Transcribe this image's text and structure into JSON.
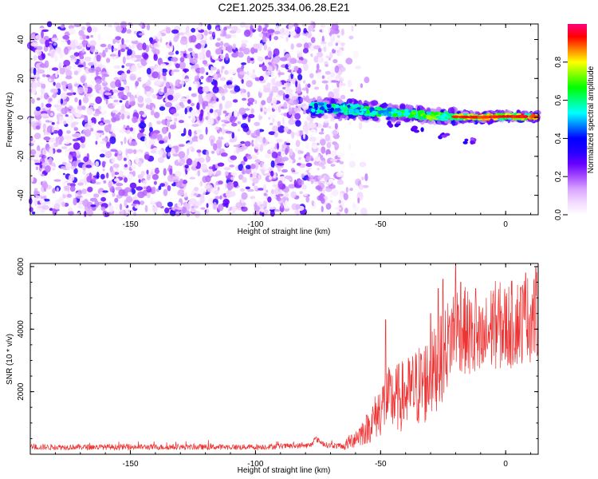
{
  "figure_title": "C2E1.2025.334.06.28.E21",
  "chart_data": [
    {
      "type": "heatmap",
      "panel": "spectrogram",
      "xlabel": "Height of straight line (km)",
      "ylabel": "Frequency (Hz)",
      "xlim": [
        -190,
        13
      ],
      "ylim": [
        -50,
        48
      ],
      "x_ticks": [
        -150,
        -100,
        -50,
        0
      ],
      "y_ticks": [
        -40,
        -20,
        0,
        20,
        40
      ],
      "colorbar": {
        "label": "Normalized spectral amplitude",
        "range": [
          0,
          1
        ],
        "ticks": [
          "0.0",
          "0.2",
          "0.4",
          "0.6",
          "0.8"
        ],
        "colors": [
          "#ffffff",
          "#f2d9ff",
          "#d9a6ff",
          "#a64dff",
          "#6600ff",
          "#2200ff",
          "#0000ff",
          "#0080ff",
          "#00ffff",
          "#00ff80",
          "#00ff00",
          "#80ff00",
          "#ffff00",
          "#ff8000",
          "#ff0000",
          "#ff0080"
        ]
      },
      "signal_track": {
        "onset_x": -78,
        "points": [
          [
            -78,
            5
          ],
          [
            -65,
            4.5
          ],
          [
            -50,
            3
          ],
          [
            -40,
            2
          ],
          [
            -30,
            0.8
          ],
          [
            -20,
            0.3
          ],
          [
            -10,
            0
          ],
          [
            0,
            0.5
          ],
          [
            13,
            0.3
          ]
        ],
        "peak_start_x": -20,
        "secondary_branch": [
          [
            -45,
            -3
          ],
          [
            -35,
            -6
          ],
          [
            -25,
            -9
          ],
          [
            -15,
            -12
          ]
        ]
      },
      "noise_region": {
        "x_range": [
          -190,
          -65
        ],
        "dense_until_x": -78,
        "typical_amplitude": 0.2
      }
    },
    {
      "type": "line",
      "panel": "snr",
      "xlabel": "Height of straight line (km)",
      "ylabel": "SNR (10 * v/v)",
      "xlim": [
        -190,
        13
      ],
      "ylim": [
        0,
        6100
      ],
      "x_ticks": [
        -150,
        -100,
        -50,
        0
      ],
      "y_ticks": [
        2000,
        4000,
        6000
      ],
      "color": "#ee3333",
      "series": [
        {
          "profile": [
            [
              -190,
              230
            ],
            [
              -100,
              230
            ],
            [
              -78,
              280
            ],
            [
              -76,
              500
            ],
            [
              -72,
              300
            ],
            [
              -65,
              250
            ],
            [
              -55,
              900
            ],
            [
              -48,
              1800
            ],
            [
              -40,
              2000
            ],
            [
              -35,
              2300
            ],
            [
              -30,
              2600
            ],
            [
              -25,
              3300
            ],
            [
              -20,
              4300
            ],
            [
              -15,
              4000
            ],
            [
              -10,
              3500
            ],
            [
              -5,
              4300
            ],
            [
              0,
              4200
            ],
            [
              5,
              4400
            ],
            [
              10,
              4500
            ],
            [
              13,
              4600
            ]
          ],
          "spikes": [
            [
              -48,
              4300
            ],
            [
              -30,
              4500
            ],
            [
              -27,
              5300
            ],
            [
              -25,
              5600
            ],
            [
              -20,
              6050
            ],
            [
              -18,
              5500
            ],
            [
              -12,
              5300
            ],
            [
              -5,
              5100
            ],
            [
              8,
              5800
            ],
            [
              12,
              6000
            ]
          ]
        }
      ]
    }
  ]
}
